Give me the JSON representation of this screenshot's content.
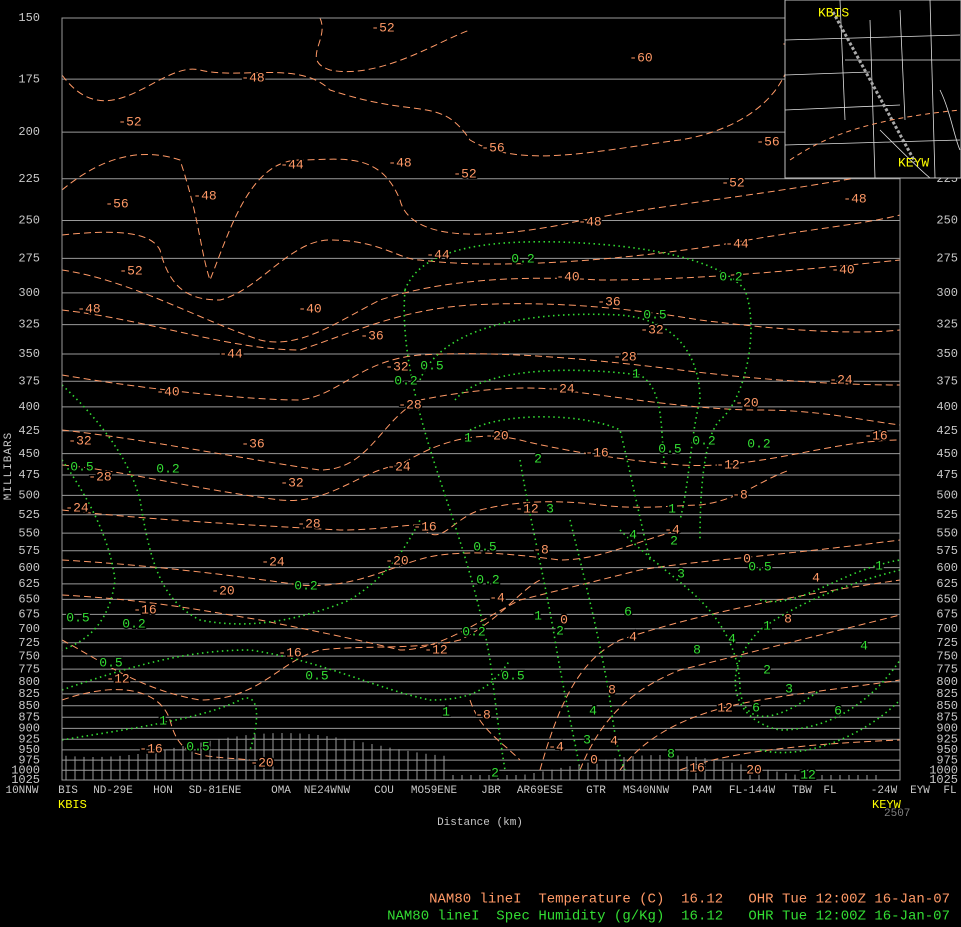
{
  "chart_data": {
    "type": "cross-section",
    "y_axis": {
      "label": "MILLIBARS",
      "log": true,
      "ylim": [
        150,
        1025
      ],
      "yticks": [
        150,
        175,
        200,
        225,
        250,
        275,
        300,
        325,
        350,
        375,
        400,
        425,
        450,
        475,
        500,
        525,
        550,
        575,
        600,
        625,
        650,
        675,
        700,
        725,
        750,
        775,
        800,
        825,
        850,
        875,
        900,
        925,
        950,
        975,
        1000,
        1025
      ]
    },
    "x_axis": {
      "label": "Distance (km)",
      "stations": [
        "10NNW",
        "BIS",
        "ND-29E",
        "HON",
        "SD-81ENE",
        "OMA",
        "NE24WNW",
        "COU",
        "MO59ENE",
        "JBR",
        "AR69ESE",
        "GTR",
        "MS40NNW",
        "PAM",
        "FL-144W",
        "TBW",
        "FL",
        "-24W",
        "EYW",
        "FL"
      ],
      "start": "KBIS",
      "end": "KEYW",
      "code": "2507"
    },
    "map": {
      "start": "KBIS",
      "end": "KEYW"
    },
    "temperature_color": "#ff9966",
    "humidity_color": "#33dd33",
    "temperature_labels": [
      -52,
      -60,
      -60,
      -48,
      -52,
      -56,
      -56,
      -44,
      -48,
      -52,
      -52,
      -56,
      -48,
      -48,
      -48,
      -44,
      -44,
      -52,
      -40,
      -40,
      -48,
      -40,
      -36,
      -32,
      -36,
      -44,
      -28,
      -32,
      -40,
      -24,
      -24,
      -28,
      -20,
      -32,
      -36,
      -20,
      -16,
      -16,
      -12,
      -28,
      -24,
      -32,
      -8,
      -24,
      -12,
      -28,
      -16,
      -8,
      -4,
      -24,
      -20,
      0,
      4,
      -20,
      -4,
      -16,
      0,
      8,
      4,
      -16,
      -12,
      -12,
      8,
      12,
      -8,
      -4,
      4,
      -16,
      -20,
      0,
      16,
      20
    ],
    "humidity_labels": [
      0.2,
      0.2,
      0.5,
      0.5,
      0.2,
      1,
      1,
      0.5,
      0.2,
      0.2,
      0.5,
      0.2,
      2,
      3,
      1,
      4,
      2,
      0.5,
      0.2,
      3,
      0.5,
      1,
      0.2,
      0.5,
      0.2,
      6,
      1,
      2,
      0.2,
      4,
      1,
      8,
      4,
      0.5,
      0.5,
      0.5,
      2,
      3,
      1,
      1,
      4,
      6,
      6,
      0.5,
      3,
      8,
      2,
      12
    ],
    "footer": [
      "NAM80 lineI  Temperature (C)  16.12   OHR Tue 12:00Z 16-Jan-07",
      "NAM80 lineI  Spec Humidity (g/Kg)  16.12   OHR Tue 12:00Z 16-Jan-07"
    ]
  }
}
